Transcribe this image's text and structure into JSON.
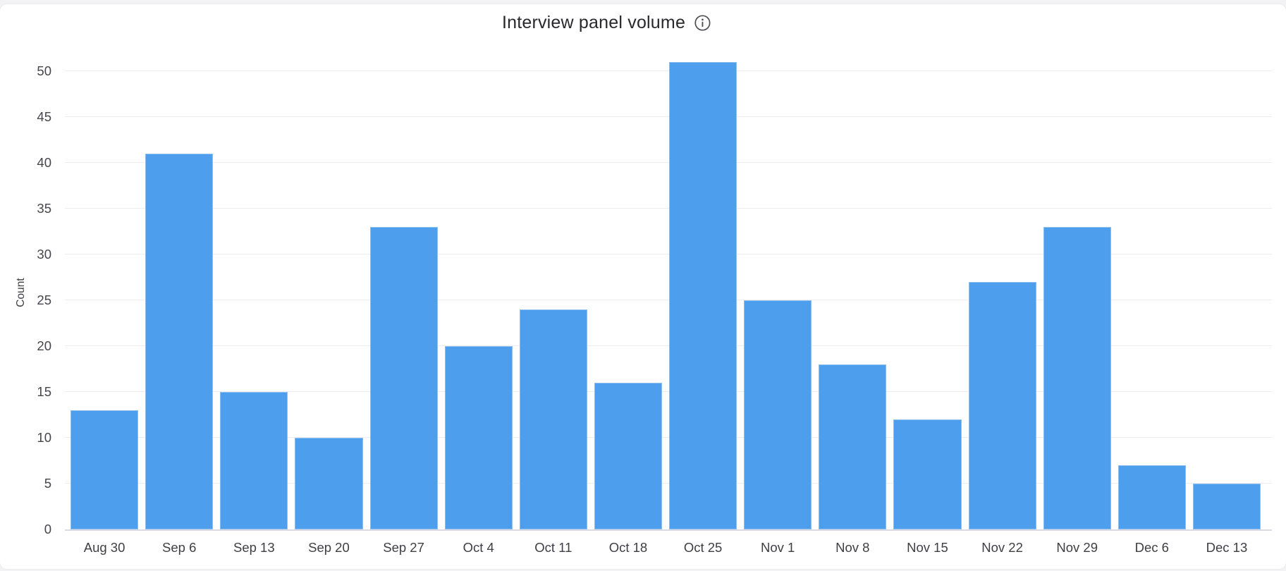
{
  "page": {
    "background": "#f3f3f5",
    "card_background": "#ffffff"
  },
  "header": {
    "title": "Interview panel volume",
    "info_icon": "info-circle-icon"
  },
  "chart_data": {
    "type": "bar",
    "title": "Interview panel volume",
    "categories": [
      "Aug 30",
      "Sep 6",
      "Sep 13",
      "Sep 20",
      "Sep 27",
      "Oct 4",
      "Oct 11",
      "Oct 18",
      "Oct 25",
      "Nov 1",
      "Nov 8",
      "Nov 15",
      "Nov 22",
      "Nov 29",
      "Dec 6",
      "Dec 13"
    ],
    "values": [
      13,
      41,
      15,
      10,
      33,
      20,
      24,
      16,
      51,
      25,
      18,
      12,
      27,
      33,
      7,
      5
    ],
    "xlabel": "",
    "ylabel": "Count",
    "ylim": [
      0,
      55
    ],
    "yticks": [
      0,
      5,
      10,
      15,
      20,
      25,
      30,
      35,
      40,
      45,
      50
    ],
    "grid": true,
    "legend": false,
    "bar_color": "#4d9eec",
    "bar_border_color": "#8dbef0",
    "gridline_color": "#ededf1",
    "axis_line_color": "#d9dae3",
    "tick_label_color": "#46464d",
    "title_color": "#28282d"
  }
}
